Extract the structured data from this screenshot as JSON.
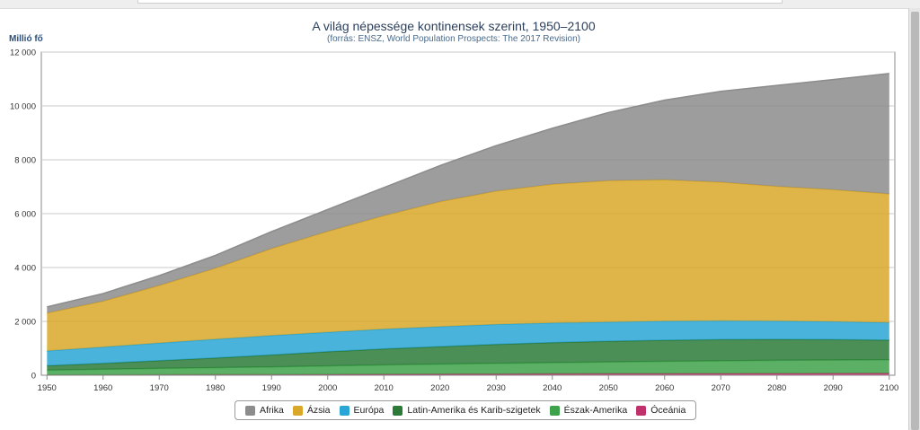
{
  "chart_data": {
    "type": "area",
    "stacked": true,
    "title": "A világ népessége kontinensek szerint, 1950–2100",
    "subtitle": "(forrás: ENSZ, World Population Prospects: The 2017 Revision)",
    "ylabel": "Millió fő",
    "ylim": [
      0,
      12000
    ],
    "yticks": [
      0,
      2000,
      4000,
      6000,
      8000,
      10000,
      12000
    ],
    "ytick_labels": [
      "0",
      "2 000",
      "4 000",
      "6 000",
      "8 000",
      "10 000",
      "12 000"
    ],
    "xlim": [
      1949,
      2101
    ],
    "xticks": [
      1950,
      1960,
      1970,
      1980,
      1990,
      2000,
      2010,
      2020,
      2030,
      2040,
      2050,
      2060,
      2070,
      2080,
      2090,
      2100
    ],
    "x": [
      1950,
      1960,
      1970,
      1980,
      1990,
      2000,
      2010,
      2020,
      2030,
      2040,
      2050,
      2060,
      2070,
      2080,
      2090,
      2100
    ],
    "grid": true,
    "legend_position": "bottom-center",
    "series": [
      {
        "name": "Óceánia",
        "color": "#c0306a",
        "values": [
          13,
          16,
          20,
          23,
          27,
          31,
          37,
          43,
          48,
          53,
          57,
          61,
          64,
          67,
          70,
          72
        ]
      },
      {
        "name": "Észak-Amerika",
        "color": "#3ea24a",
        "values": [
          173,
          205,
          232,
          257,
          282,
          315,
          345,
          370,
          395,
          415,
          435,
          455,
          470,
          485,
          495,
          500
        ]
      },
      {
        "name": "Latin-Amerika és Karib-szigetek",
        "color": "#2c7a38",
        "values": [
          168,
          222,
          287,
          364,
          446,
          526,
          597,
          650,
          705,
          745,
          770,
          785,
          790,
          780,
          760,
          730
        ]
      },
      {
        "name": "Európa",
        "color": "#2aa6d6",
        "values": [
          549,
          605,
          657,
          694,
          721,
          726,
          736,
          742,
          740,
          728,
          716,
          705,
          695,
          680,
          665,
          650
        ]
      },
      {
        "name": "Ázsia",
        "color": "#d9a82a",
        "values": [
          1404,
          1701,
          2138,
          2634,
          3226,
          3741,
          4210,
          4640,
          4950,
          5150,
          5250,
          5250,
          5150,
          5000,
          4900,
          4780
        ]
      },
      {
        "name": "Afrika",
        "color": "#8c8c8c",
        "values": [
          228,
          285,
          366,
          478,
          630,
          818,
          1044,
          1340,
          1690,
          2080,
          2530,
          2960,
          3370,
          3750,
          4090,
          4470
        ]
      }
    ],
    "legend_order": [
      "Afrika",
      "Ázsia",
      "Európa",
      "Latin-Amerika és Karib-szigetek",
      "Észak-Amerika",
      "Óceánia"
    ]
  }
}
